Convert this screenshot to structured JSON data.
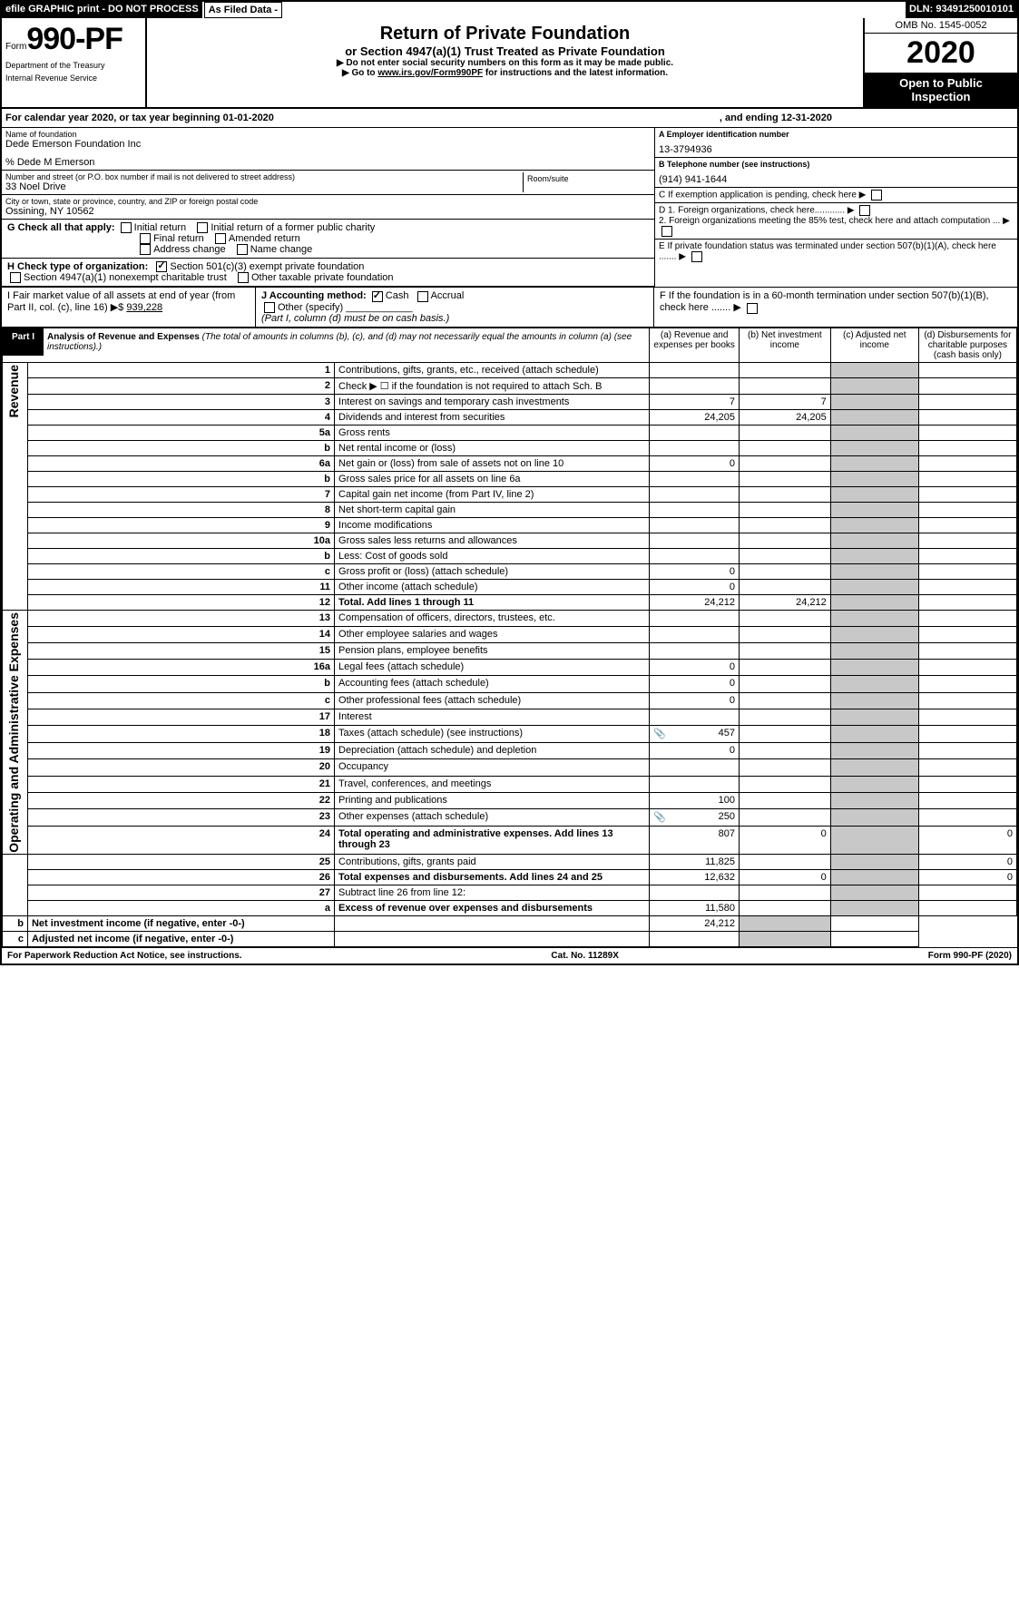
{
  "header": {
    "efile": "efile GRAPHIC print - DO NOT PROCESS",
    "asfiled": "As Filed Data -",
    "dln": "DLN: 93491250010101",
    "form_prefix": "Form",
    "form_number": "990-PF",
    "dept1": "Department of the Treasury",
    "dept2": "Internal Revenue Service",
    "title": "Return of Private Foundation",
    "subtitle": "or Section 4947(a)(1) Trust Treated as Private Foundation",
    "warn1": "▶ Do not enter social security numbers on this form as it may be made public.",
    "warn2_pre": "▶ Go to ",
    "warn2_link": "www.irs.gov/Form990PF",
    "warn2_post": " for instructions and the latest information.",
    "omb": "OMB No. 1545-0052",
    "year": "2020",
    "inspect": "Open to Public Inspection"
  },
  "cal": {
    "text1": "For calendar year 2020, or tax year beginning 01-01-2020",
    "text2": ", and ending 12-31-2020"
  },
  "org": {
    "name_lbl": "Name of foundation",
    "name": "Dede Emerson Foundation Inc",
    "care_of": "% Dede M Emerson",
    "street_lbl": "Number and street (or P.O. box number if mail is not delivered to street address)",
    "street": "33 Noel Drive",
    "room_lbl": "Room/suite",
    "city_lbl": "City or town, state or province, country, and ZIP or foreign postal code",
    "city": "Ossining, NY  10562",
    "ein_lbl": "A Employer identification number",
    "ein": "13-3794936",
    "phone_lbl": "B Telephone number (see instructions)",
    "phone": "(914) 941-1644",
    "c_lbl": "C If exemption application is pending, check here",
    "d1": "D 1. Foreign organizations, check here............",
    "d2": "2. Foreign organizations meeting the 85% test, check here and attach computation ...",
    "e_lbl": "E If private foundation status was terminated under section 507(b)(1)(A), check here .......",
    "f_lbl": "F If the foundation is in a 60-month termination under section 507(b)(1)(B), check here ......."
  },
  "g": {
    "label": "G Check all that apply:",
    "opts": [
      "Initial return",
      "Initial return of a former public charity",
      "Final return",
      "Amended return",
      "Address change",
      "Name change"
    ]
  },
  "h": {
    "label": "H Check type of organization:",
    "opt1": "Section 501(c)(3) exempt private foundation",
    "opt2": "Section 4947(a)(1) nonexempt charitable trust",
    "opt3": "Other taxable private foundation"
  },
  "i": {
    "label": "I Fair market value of all assets at end of year (from Part II, col. (c), line 16) ▶$",
    "value": "939,228"
  },
  "j": {
    "label": "J Accounting method:",
    "cash": "Cash",
    "accrual": "Accrual",
    "other": "Other (specify)",
    "note": "(Part I, column (d) must be on cash basis.)"
  },
  "part1": {
    "label": "Part I",
    "title": "Analysis of Revenue and Expenses",
    "desc": "(The total of amounts in columns (b), (c), and (d) may not necessarily equal the amounts in column (a) (see instructions).)",
    "col_a": "(a) Revenue and expenses per books",
    "col_b": "(b) Net investment income",
    "col_c": "(c) Adjusted net income",
    "col_d": "(d) Disbursements for charitable purposes (cash basis only)",
    "revenue_label": "Revenue",
    "expenses_label": "Operating and Administrative Expenses"
  },
  "rows": [
    {
      "n": "1",
      "d": "Contributions, gifts, grants, etc., received (attach schedule)",
      "a": "",
      "b": "",
      "c": "",
      "e": ""
    },
    {
      "n": "2",
      "d": "Check ▶ ☐ if the foundation is not required to attach Sch. B",
      "a": "",
      "b": "",
      "c": "",
      "e": ""
    },
    {
      "n": "3",
      "d": "Interest on savings and temporary cash investments",
      "a": "7",
      "b": "7",
      "c": "",
      "e": ""
    },
    {
      "n": "4",
      "d": "Dividends and interest from securities",
      "a": "24,205",
      "b": "24,205",
      "c": "",
      "e": ""
    },
    {
      "n": "5a",
      "d": "Gross rents",
      "a": "",
      "b": "",
      "c": "",
      "e": ""
    },
    {
      "n": "b",
      "d": "Net rental income or (loss)",
      "a": "",
      "b": "",
      "c": "",
      "e": ""
    },
    {
      "n": "6a",
      "d": "Net gain or (loss) from sale of assets not on line 10",
      "a": "0",
      "b": "",
      "c": "",
      "e": ""
    },
    {
      "n": "b",
      "d": "Gross sales price for all assets on line 6a",
      "a": "",
      "b": "",
      "c": "",
      "e": ""
    },
    {
      "n": "7",
      "d": "Capital gain net income (from Part IV, line 2)",
      "a": "",
      "b": "",
      "c": "",
      "e": ""
    },
    {
      "n": "8",
      "d": "Net short-term capital gain",
      "a": "",
      "b": "",
      "c": "",
      "e": ""
    },
    {
      "n": "9",
      "d": "Income modifications",
      "a": "",
      "b": "",
      "c": "",
      "e": ""
    },
    {
      "n": "10a",
      "d": "Gross sales less returns and allowances",
      "a": "",
      "b": "",
      "c": "",
      "e": ""
    },
    {
      "n": "b",
      "d": "Less: Cost of goods sold",
      "a": "",
      "b": "",
      "c": "",
      "e": ""
    },
    {
      "n": "c",
      "d": "Gross profit or (loss) (attach schedule)",
      "a": "0",
      "b": "",
      "c": "",
      "e": ""
    },
    {
      "n": "11",
      "d": "Other income (attach schedule)",
      "a": "0",
      "b": "",
      "c": "",
      "e": ""
    },
    {
      "n": "12",
      "d": "Total. Add lines 1 through 11",
      "a": "24,212",
      "b": "24,212",
      "c": "",
      "e": "",
      "bold": true
    },
    {
      "n": "13",
      "d": "Compensation of officers, directors, trustees, etc.",
      "a": "",
      "b": "",
      "c": "",
      "e": ""
    },
    {
      "n": "14",
      "d": "Other employee salaries and wages",
      "a": "",
      "b": "",
      "c": "",
      "e": ""
    },
    {
      "n": "15",
      "d": "Pension plans, employee benefits",
      "a": "",
      "b": "",
      "c": "",
      "e": ""
    },
    {
      "n": "16a",
      "d": "Legal fees (attach schedule)",
      "a": "0",
      "b": "",
      "c": "",
      "e": ""
    },
    {
      "n": "b",
      "d": "Accounting fees (attach schedule)",
      "a": "0",
      "b": "",
      "c": "",
      "e": ""
    },
    {
      "n": "c",
      "d": "Other professional fees (attach schedule)",
      "a": "0",
      "b": "",
      "c": "",
      "e": ""
    },
    {
      "n": "17",
      "d": "Interest",
      "a": "",
      "b": "",
      "c": "",
      "e": ""
    },
    {
      "n": "18",
      "d": "Taxes (attach schedule) (see instructions)",
      "a": "457",
      "b": "",
      "c": "",
      "e": "",
      "icon": true
    },
    {
      "n": "19",
      "d": "Depreciation (attach schedule) and depletion",
      "a": "0",
      "b": "",
      "c": "",
      "e": ""
    },
    {
      "n": "20",
      "d": "Occupancy",
      "a": "",
      "b": "",
      "c": "",
      "e": ""
    },
    {
      "n": "21",
      "d": "Travel, conferences, and meetings",
      "a": "",
      "b": "",
      "c": "",
      "e": ""
    },
    {
      "n": "22",
      "d": "Printing and publications",
      "a": "100",
      "b": "",
      "c": "",
      "e": ""
    },
    {
      "n": "23",
      "d": "Other expenses (attach schedule)",
      "a": "250",
      "b": "",
      "c": "",
      "e": "",
      "icon": true
    },
    {
      "n": "24",
      "d": "Total operating and administrative expenses. Add lines 13 through 23",
      "a": "807",
      "b": "0",
      "c": "",
      "e": "0",
      "bold": true
    },
    {
      "n": "25",
      "d": "Contributions, gifts, grants paid",
      "a": "11,825",
      "b": "",
      "c": "",
      "e": "0"
    },
    {
      "n": "26",
      "d": "Total expenses and disbursements. Add lines 24 and 25",
      "a": "12,632",
      "b": "0",
      "c": "",
      "e": "0",
      "bold": true
    },
    {
      "n": "27",
      "d": "Subtract line 26 from line 12:",
      "a": "",
      "b": "",
      "c": "",
      "e": ""
    },
    {
      "n": "a",
      "d": "Excess of revenue over expenses and disbursements",
      "a": "11,580",
      "b": "",
      "c": "",
      "e": "",
      "bold": true
    },
    {
      "n": "b",
      "d": "Net investment income (if negative, enter -0-)",
      "a": "",
      "b": "24,212",
      "c": "",
      "e": "",
      "bold": true
    },
    {
      "n": "c",
      "d": "Adjusted net income (if negative, enter -0-)",
      "a": "",
      "b": "",
      "c": "",
      "e": "",
      "bold": true
    }
  ],
  "footer": {
    "left": "For Paperwork Reduction Act Notice, see instructions.",
    "mid": "Cat. No. 11289X",
    "right": "Form 990-PF (2020)"
  }
}
